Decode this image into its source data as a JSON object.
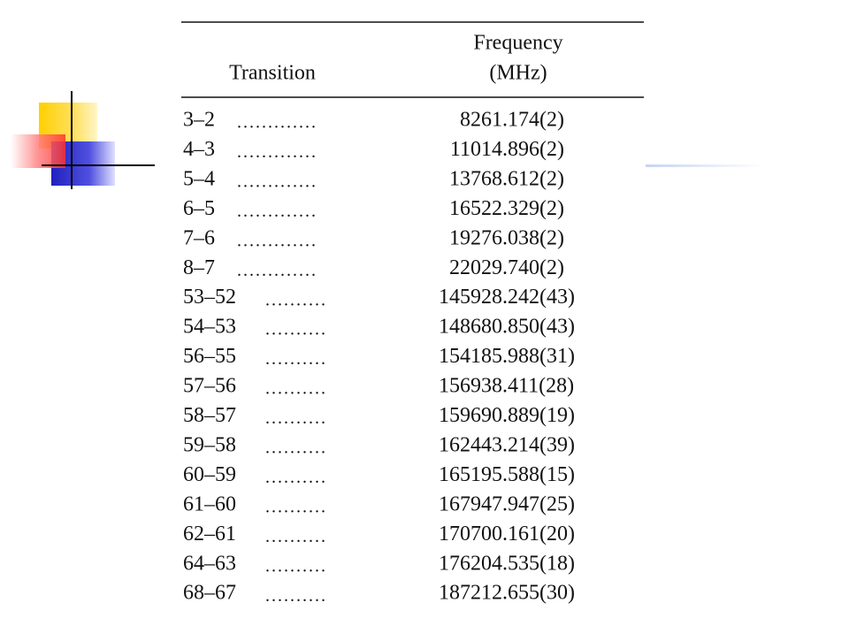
{
  "table": {
    "header": [
      "Transition",
      "Frequency",
      "(MHz)"
    ],
    "rows": [
      [
        "3–2",
        ".............",
        "8261.174(2)"
      ],
      [
        "4–3",
        ".............",
        "11014.896(2)"
      ],
      [
        "5–4",
        ".............",
        "13768.612(2)"
      ],
      [
        "6–5",
        ".............",
        "16522.329(2)"
      ],
      [
        "7–6",
        ".............",
        "19276.038(2)"
      ],
      [
        "8–7",
        ".............",
        "22029.740(2)"
      ],
      [
        "53–52",
        "..........",
        "145928.242(43)"
      ],
      [
        "54–53",
        "..........",
        "148680.850(43)"
      ],
      [
        "56–55",
        "..........",
        "154185.988(31)"
      ],
      [
        "57–56",
        "..........",
        "156938.411(28)"
      ],
      [
        "58–57",
        "..........",
        "159690.889(19)"
      ],
      [
        "59–58",
        "..........",
        "162443.214(39)"
      ],
      [
        "60–59",
        "..........",
        "165195.588(15)"
      ],
      [
        "61–60",
        "..........",
        "167947.947(25)"
      ],
      [
        "62–61",
        "..........",
        "170700.161(20)"
      ],
      [
        "64–63",
        "..........",
        "176204.535(18)"
      ],
      [
        "68–67",
        "..........",
        "187212.655(30)"
      ]
    ]
  }
}
